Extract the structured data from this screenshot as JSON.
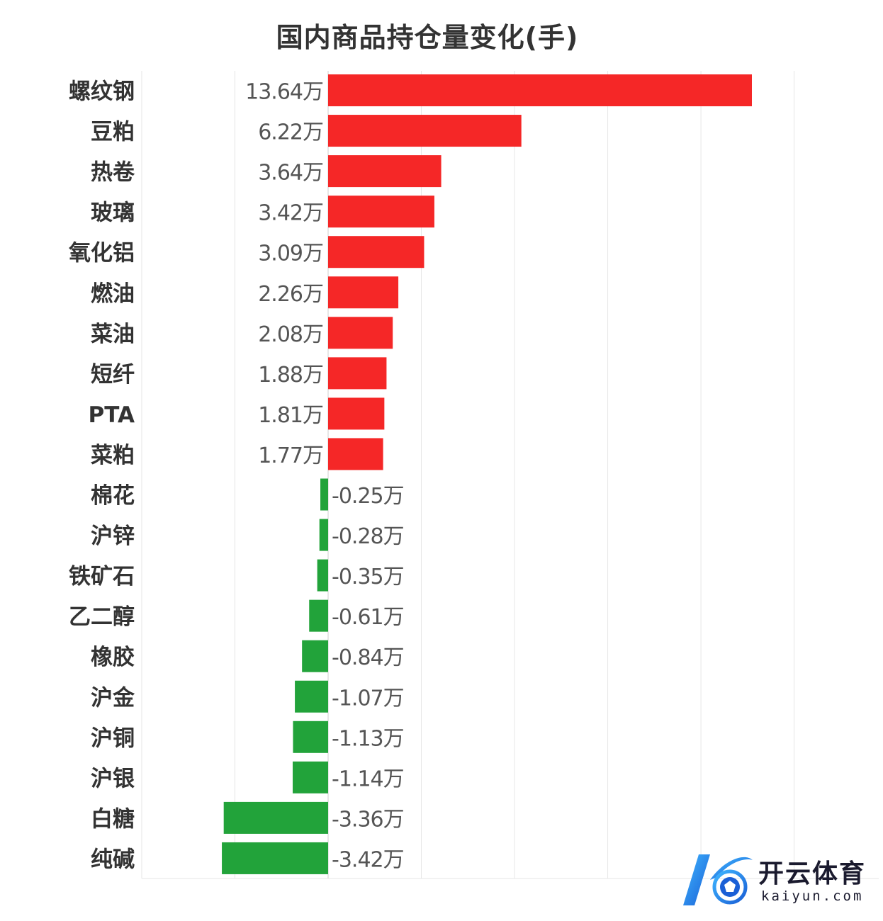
{
  "chart_data": {
    "type": "bar",
    "orientation": "horizontal",
    "title": "国内商品持仓量变化(手)",
    "unit_suffix": "万",
    "categories": [
      "螺纹钢",
      "豆粕",
      "热卷",
      "玻璃",
      "氧化铝",
      "燃油",
      "菜油",
      "短纤",
      "PTA",
      "菜粕",
      "棉花",
      "沪锌",
      "铁矿石",
      "乙二醇",
      "橡胶",
      "沪金",
      "沪铜",
      "沪银",
      "白糖",
      "纯碱"
    ],
    "values": [
      13.64,
      6.22,
      3.64,
      3.42,
      3.09,
      2.26,
      2.08,
      1.88,
      1.81,
      1.77,
      -0.25,
      -0.28,
      -0.35,
      -0.61,
      -0.84,
      -1.07,
      -1.13,
      -1.14,
      -3.36,
      -3.42
    ],
    "xlim": [
      -6,
      15
    ],
    "grid": true,
    "positive_color": "#f52727",
    "negative_color": "#22a33a"
  },
  "watermark": {
    "name_cn": "开云体育",
    "name_en": "kaiyun.com"
  }
}
